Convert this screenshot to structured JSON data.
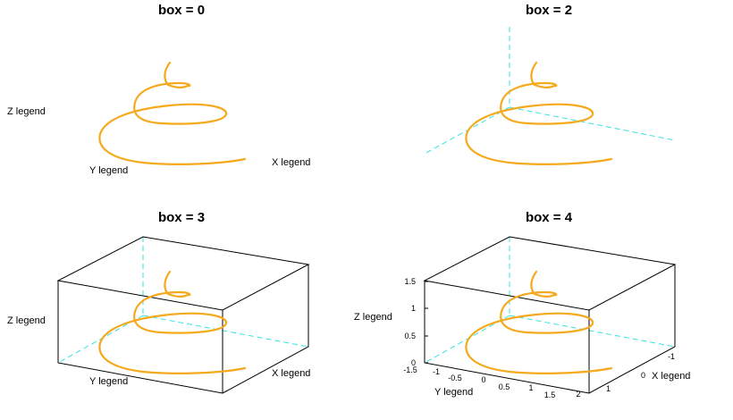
{
  "chart_data": [
    {
      "type": "line3d",
      "title": "box = 0",
      "box": 0,
      "xlabel": "X legend",
      "ylabel": "Y legend",
      "zlabel": "Z legend",
      "series": [
        {
          "curve": "helix",
          "turns": 3,
          "z_range": [
            0,
            1.5
          ],
          "color": "#f5a91c"
        }
      ]
    },
    {
      "type": "line3d",
      "title": "box = 2",
      "box": 2,
      "series": [
        {
          "curve": "helix",
          "turns": 3,
          "z_range": [
            0,
            1.5
          ],
          "color": "#f5a91c"
        }
      ]
    },
    {
      "type": "line3d",
      "title": "box = 3",
      "box": 3,
      "xlabel": "X legend",
      "ylabel": "Y legend",
      "zlabel": "Z legend",
      "series": [
        {
          "curve": "helix",
          "turns": 3,
          "z_range": [
            0,
            1.5
          ],
          "color": "#f5a91c"
        }
      ]
    },
    {
      "type": "line3d",
      "title": "box = 4",
      "box": 4,
      "xlabel": "X legend",
      "ylabel": "Y legend",
      "zlabel": "Z legend",
      "z_ticks": [
        "0",
        "0.5",
        "1",
        "1.5"
      ],
      "y_ticks": [
        "-1.5",
        "-1",
        "-0.5",
        "0",
        "0.5",
        "1",
        "1.5",
        "2"
      ],
      "x_ticks": [
        "-1",
        "0",
        "1"
      ],
      "series": [
        {
          "curve": "helix",
          "turns": 3,
          "z_range": [
            0,
            1.5
          ],
          "color": "#f5a91c"
        }
      ]
    }
  ],
  "colors": {
    "curve": "#f5a91c",
    "axis_dashed": "#35e3e3",
    "box": "#000000"
  }
}
